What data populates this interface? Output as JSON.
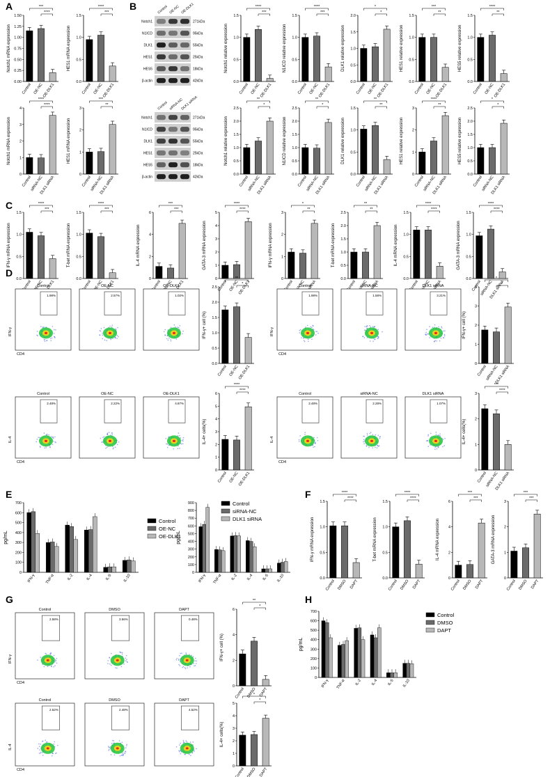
{
  "panel_letters": [
    "A",
    "B",
    "C",
    "D",
    "E",
    "F",
    "G",
    "H"
  ],
  "colors": {
    "black": "#000000",
    "dark_gray": "#6b6b6b",
    "light_gray": "#b8b8b8",
    "white": "#ffffff"
  },
  "western_blots": [
    {
      "lanes": [
        "Control",
        "OE-NC",
        "OE-DLK1"
      ],
      "proteins": [
        "Notch1",
        "N1ICD",
        "DLK1",
        "HES1",
        "HES5",
        "β-actin"
      ],
      "sizes": [
        "271kDa",
        "95kDa",
        "55kDa",
        "25kDa",
        "18kDa",
        "42kDa"
      ]
    },
    {
      "lanes": [
        "Control",
        "siRNA-NC",
        "DLK1 siRNA"
      ],
      "proteins": [
        "Notch1",
        "N1ICD",
        "DLK1",
        "HES1",
        "HES5",
        "β-actin"
      ],
      "sizes": [
        "271kDa",
        "95kDa",
        "55kDa",
        "25kDa",
        "18kDa",
        "42kDa"
      ]
    }
  ],
  "flow_sets": [
    {
      "titles": [
        "Control",
        "OE-NC",
        "OE-DLK1"
      ],
      "ylabel": "IFN-γ",
      "xlabel": "CD4",
      "percents": [
        "1.98%",
        "2.57%",
        "1.02%"
      ]
    },
    {
      "titles": [
        "Control",
        "siRNA-NC",
        "DLK1 siRNA"
      ],
      "ylabel": "IFN-γ",
      "xlabel": "CD4",
      "percents": [
        "1.98%",
        "1.58%",
        "3.21%"
      ]
    },
    {
      "titles": [
        "Control",
        "OE-NC",
        "OE-DLK1"
      ],
      "ylabel": "IL-4",
      "xlabel": "CD4",
      "percents": [
        "2.48%",
        "2.22%",
        "4.87%"
      ]
    },
    {
      "titles": [
        "Control",
        "siRNA-NC",
        "DLK1 siRNA"
      ],
      "ylabel": "IL-4",
      "xlabel": "CD4",
      "percents": [
        "2.48%",
        "2.28%",
        "1.07%"
      ]
    },
    {
      "titles": [
        "Control",
        "DMSO",
        "DAPT"
      ],
      "ylabel": "IFN-γ",
      "xlabel": "CD4",
      "percents": [
        "2.58%",
        "3.56%",
        "0.48%"
      ]
    },
    {
      "titles": [
        "Control",
        "DMSO",
        "DAPT"
      ],
      "ylabel": "IL-4",
      "xlabel": "CD4",
      "percents": [
        "2.52%",
        "2.48%",
        "4.52%"
      ]
    }
  ],
  "chart_data": [
    {
      "type": "bar",
      "panel": "A",
      "ylabel": "Notch1 mRNA expression",
      "categories": [
        "Control",
        "OE-NC",
        "OE-DLK1"
      ],
      "values": [
        1.15,
        1.2,
        0.2
      ],
      "ylim": [
        0,
        1.5
      ],
      "yticks": [
        "0.00",
        "0.25",
        "0.50",
        "0.75",
        "1.00",
        "1.25",
        "1.50"
      ],
      "sig": [
        "***",
        "****"
      ]
    },
    {
      "type": "bar",
      "panel": "A",
      "ylabel": "HES1 mRNA expression",
      "categories": [
        "Control",
        "OE-NC",
        "OE-DLK1"
      ],
      "values": [
        0.95,
        1.05,
        0.35
      ],
      "ylim": [
        0,
        1.5
      ],
      "yticks": [
        "0.0",
        "0.5",
        "1.0",
        "1.5"
      ],
      "sig": [
        "****",
        "***"
      ]
    },
    {
      "type": "bar",
      "panel": "B",
      "ylabel": "Notch1 relative expression",
      "categories": [
        "Control",
        "OE-NC",
        "OE-DLK1"
      ],
      "values": [
        1.0,
        1.18,
        0.07
      ],
      "ylim": [
        0,
        1.5
      ],
      "yticks": [
        "0.0",
        "0.5",
        "1.0",
        "1.5"
      ],
      "sig": [
        "****",
        "***"
      ]
    },
    {
      "type": "bar",
      "panel": "B",
      "ylabel": "N1ICD relative expression",
      "categories": [
        "Control",
        "OE-NC",
        "OE-DLK1"
      ],
      "values": [
        1.0,
        1.03,
        0.33
      ],
      "ylim": [
        0,
        1.5
      ],
      "yticks": [
        "0.0",
        "0.5",
        "1.0",
        "1.5"
      ],
      "sig": [
        "****",
        "***"
      ]
    },
    {
      "type": "bar",
      "panel": "B",
      "ylabel": "DLK1 relative expression",
      "categories": [
        "Control",
        "OE-NC",
        "OE-DLK1"
      ],
      "values": [
        1.0,
        1.05,
        1.58
      ],
      "ylim": [
        0,
        2.0
      ],
      "yticks": [
        "0.0",
        "0.5",
        "1.0",
        "1.5",
        "2.0"
      ],
      "sig": [
        "*",
        "*"
      ]
    },
    {
      "type": "bar",
      "panel": "B",
      "ylabel": "HES1 relative expression",
      "categories": [
        "Control",
        "OE-NC",
        "OE-DLK1"
      ],
      "values": [
        1.0,
        1.0,
        0.32
      ],
      "ylim": [
        0,
        1.5
      ],
      "yticks": [
        "0.0",
        "0.5",
        "1.0",
        "1.5"
      ],
      "sig": [
        "***",
        "**"
      ]
    },
    {
      "type": "bar",
      "panel": "B",
      "ylabel": "HES5 relative expression",
      "categories": [
        "Control",
        "OE-NC",
        "OE-DLK1"
      ],
      "values": [
        1.0,
        1.05,
        0.18
      ],
      "ylim": [
        0,
        1.5
      ],
      "yticks": [
        "0.0",
        "0.5",
        "1.0",
        "1.5"
      ],
      "sig": [
        "****",
        "**"
      ]
    },
    {
      "type": "bar",
      "panel": "A",
      "ylabel": "Notch1 mRNA expression",
      "categories": [
        "Control",
        "siRNA-NC",
        "DLK1 siRNA"
      ],
      "values": [
        1.0,
        0.98,
        3.55
      ],
      "ylim": [
        0,
        4
      ],
      "yticks": [
        "0",
        "1",
        "2",
        "3",
        "4"
      ],
      "sig": [
        "****",
        "****"
      ]
    },
    {
      "type": "bar",
      "panel": "A",
      "ylabel": "HES1 mRNA expression",
      "categories": [
        "Control",
        "siRNA-NC",
        "DLK1 siRNA"
      ],
      "values": [
        1.0,
        1.02,
        2.25
      ],
      "ylim": [
        0,
        3
      ],
      "yticks": [
        "0",
        "1",
        "2",
        "3"
      ],
      "sig": [
        "***",
        "**"
      ]
    },
    {
      "type": "bar",
      "panel": "B",
      "ylabel": "Notch1 relative expression",
      "categories": [
        "Control",
        "siRNA-NC",
        "DLK1 siRNA"
      ],
      "values": [
        1.0,
        1.25,
        2.0
      ],
      "ylim": [
        0,
        2.5
      ],
      "yticks": [
        "0.0",
        "0.5",
        "1.0",
        "1.5",
        "2.0",
        "2.5"
      ],
      "sig": [
        "**",
        "*"
      ]
    },
    {
      "type": "bar",
      "panel": "B",
      "ylabel": "N1ICD relative expression",
      "categories": [
        "Control",
        "siRNA-NC",
        "DLK1 siRNA"
      ],
      "values": [
        1.0,
        0.98,
        1.95
      ],
      "ylim": [
        0,
        2.5
      ],
      "yticks": [
        "0.0",
        "0.5",
        "1.0",
        "1.5",
        "2.0",
        "2.5"
      ],
      "sig": [
        "**",
        "*"
      ]
    },
    {
      "type": "bar",
      "panel": "B",
      "ylabel": "DLK1 relative expression",
      "categories": [
        "Control",
        "siRNA-NC",
        "DLK1 siRNA"
      ],
      "values": [
        1.02,
        1.1,
        0.33
      ],
      "ylim": [
        0,
        1.5
      ],
      "yticks": [
        "0.0",
        "0.5",
        "1.0",
        "1.5"
      ],
      "sig": [
        "**",
        "**"
      ]
    },
    {
      "type": "bar",
      "panel": "B",
      "ylabel": "HES1 relative expression",
      "categories": [
        "Control",
        "siRNA-NC",
        "DLK1 siRNA"
      ],
      "values": [
        1.0,
        1.5,
        2.65
      ],
      "ylim": [
        0,
        3
      ],
      "yticks": [
        "0",
        "1",
        "2",
        "3"
      ],
      "sig": [
        "****",
        "**"
      ]
    },
    {
      "type": "bar",
      "panel": "B",
      "ylabel": "HES5 relative expression",
      "categories": [
        "Control",
        "siRNA-NC",
        "DLK1 siRNA"
      ],
      "values": [
        1.0,
        1.0,
        1.92
      ],
      "ylim": [
        0,
        2.5
      ],
      "yticks": [
        "0.0",
        "0.5",
        "1.0",
        "1.5",
        "2.0",
        "2.5"
      ],
      "sig": [
        "*",
        "*"
      ]
    },
    {
      "type": "bar",
      "panel": "C",
      "ylabel": "IFN-γ mRNA expression",
      "categories": [
        "Control",
        "OE-NC",
        "OE-DLK1"
      ],
      "values": [
        1.05,
        0.97,
        0.45
      ],
      "ylim": [
        0,
        1.5
      ],
      "yticks": [
        "0.0",
        "0.5",
        "1.0",
        "1.5"
      ],
      "sig": [
        "****",
        "***"
      ]
    },
    {
      "type": "bar",
      "panel": "C",
      "ylabel": "T-bet mRNA expression",
      "categories": [
        "Control",
        "OE-NC",
        "OE-DLK1"
      ],
      "values": [
        1.03,
        0.95,
        0.13
      ],
      "ylim": [
        0,
        1.5
      ],
      "yticks": [
        "0.0",
        "0.5",
        "1.0",
        "1.5"
      ],
      "sig": [
        "****",
        "***"
      ]
    },
    {
      "type": "bar",
      "panel": "C",
      "ylabel": "IL-4 mRNA expression",
      "categories": [
        "Control",
        "OE-NC",
        "OE-DLK1"
      ],
      "values": [
        1.1,
        0.95,
        5.0
      ],
      "ylim": [
        0,
        6
      ],
      "yticks": [
        "0",
        "2",
        "4",
        "6"
      ],
      "sig": [
        "***",
        "***"
      ]
    },
    {
      "type": "bar",
      "panel": "C",
      "ylabel": "GATA-3 mRNA expression",
      "categories": [
        "Control",
        "OE-NC",
        "OE-DLK1"
      ],
      "values": [
        1.0,
        1.05,
        4.3
      ],
      "ylim": [
        0,
        5
      ],
      "yticks": [
        "0",
        "1",
        "2",
        "3",
        "4",
        "5"
      ],
      "sig": [
        "****",
        "****"
      ]
    },
    {
      "type": "bar",
      "panel": "C",
      "ylabel": "IFN-γ mRNA expression",
      "categories": [
        "Control",
        "siRNA-NC",
        "DLK1 siRNA"
      ],
      "values": [
        1.2,
        1.15,
        2.5
      ],
      "ylim": [
        0,
        3
      ],
      "yticks": [
        "0",
        "1",
        "2",
        "3"
      ],
      "sig": [
        "*",
        "**"
      ]
    },
    {
      "type": "bar",
      "panel": "C",
      "ylabel": "T-bet mRNA expression",
      "categories": [
        "Control",
        "siRNA-NC",
        "DLK1 siRNA"
      ],
      "values": [
        1.0,
        1.0,
        2.0
      ],
      "ylim": [
        0,
        2.5
      ],
      "yticks": [
        "0.0",
        "0.5",
        "1.0",
        "1.5",
        "2.0",
        "2.5"
      ],
      "sig": [
        "**",
        "**"
      ]
    },
    {
      "type": "bar",
      "panel": "C",
      "ylabel": "IL-4 mRNA expression",
      "categories": [
        "Control",
        "siRNA-NC",
        "DLK1 siRNA"
      ],
      "values": [
        1.1,
        1.1,
        0.28
      ],
      "ylim": [
        0,
        1.5
      ],
      "yticks": [
        "0.0",
        "0.5",
        "1.0",
        "1.5"
      ],
      "sig": [
        "****",
        "****"
      ]
    },
    {
      "type": "bar",
      "panel": "C",
      "ylabel": "GATA-3 mRNA expression",
      "categories": [
        "Control",
        "siRNA-NC",
        "DLK1 siRNA"
      ],
      "values": [
        0.97,
        1.12,
        0.15
      ],
      "ylim": [
        0,
        1.5
      ],
      "yticks": [
        "0.0",
        "0.5",
        "1.0",
        "1.5"
      ],
      "sig": [
        "****",
        "****"
      ]
    },
    {
      "type": "bar",
      "panel": "D",
      "ylabel": "IFN-γ+ cell (%)",
      "categories": [
        "Control",
        "OE-NC",
        "OE-DLK1"
      ],
      "values": [
        1.75,
        1.85,
        0.85
      ],
      "ylim": [
        0,
        2.5
      ],
      "yticks": [
        "0.0",
        "0.5",
        "1.0",
        "1.5",
        "2.0",
        "2.5"
      ],
      "sig": [
        "**",
        "*"
      ]
    },
    {
      "type": "bar",
      "panel": "D",
      "ylabel": "IFN-γ+ cell (%)",
      "categories": [
        "Control",
        "siRNA-NC",
        "DLK1 siRNA"
      ],
      "values": [
        1.75,
        1.65,
        2.95
      ],
      "ylim": [
        0,
        4
      ],
      "yticks": [
        "0",
        "1",
        "2",
        "3",
        "4"
      ],
      "sig": [
        "*",
        "*"
      ]
    },
    {
      "type": "bar",
      "panel": "D",
      "ylabel": "IL-4+ cells(%)",
      "categories": [
        "Control",
        "OE-NC",
        "OE-DLK1"
      ],
      "values": [
        2.4,
        2.35,
        4.95
      ],
      "ylim": [
        0,
        6
      ],
      "yticks": [
        "0",
        "1",
        "2",
        "3",
        "4",
        "5",
        "6"
      ],
      "sig": [
        "****",
        "****"
      ]
    },
    {
      "type": "bar",
      "panel": "D",
      "ylabel": "IL-4+ cells(%)",
      "categories": [
        "Control",
        "siRNA-NC",
        "DLK1 siRNA"
      ],
      "values": [
        2.4,
        2.2,
        1.0
      ],
      "ylim": [
        0,
        3
      ],
      "yticks": [
        "0",
        "1",
        "2",
        "3"
      ],
      "sig": [
        "***",
        "****"
      ]
    },
    {
      "type": "bar",
      "panel": "F",
      "ylabel": "IFN-γ mRNA expression",
      "categories": [
        "Control",
        "DMSO",
        "DAPT"
      ],
      "values": [
        1.02,
        1.02,
        0.3
      ],
      "ylim": [
        0,
        1.5
      ],
      "yticks": [
        "0.0",
        "0.5",
        "1.0",
        "1.5"
      ],
      "sig": [
        "****",
        "****"
      ]
    },
    {
      "type": "bar",
      "panel": "F",
      "ylabel": "T-bet mRNA expression",
      "categories": [
        "Control",
        "DMSO",
        "DAPT"
      ],
      "values": [
        1.0,
        1.12,
        0.27
      ],
      "ylim": [
        0,
        1.5
      ],
      "yticks": [
        "0.0",
        "0.5",
        "1.0",
        "1.5"
      ],
      "sig": [
        "****",
        "****"
      ]
    },
    {
      "type": "bar",
      "panel": "F",
      "ylabel": "IL-4 mRNA expression",
      "categories": [
        "Control",
        "DMSO",
        "DAPT"
      ],
      "values": [
        1.0,
        1.05,
        4.3
      ],
      "ylim": [
        0,
        6
      ],
      "yticks": [
        "0",
        "2",
        "4",
        "6"
      ],
      "sig": [
        "***",
        "***"
      ]
    },
    {
      "type": "bar",
      "panel": "F",
      "ylabel": "GATA-3 mRNA expression",
      "categories": [
        "Control",
        "DMSO",
        "DAPT"
      ],
      "values": [
        1.05,
        1.18,
        2.5
      ],
      "ylim": [
        0,
        3
      ],
      "yticks": [
        "0",
        "1",
        "2",
        "3"
      ],
      "sig": [
        "***",
        "***"
      ]
    },
    {
      "type": "bar",
      "panel": "G",
      "ylabel": "IFN-γ+ cell (%)",
      "categories": [
        "Control",
        "DMSO",
        "DAPT"
      ],
      "values": [
        2.5,
        3.5,
        0.5
      ],
      "ylim": [
        0,
        6
      ],
      "yticks": [
        "0",
        "2",
        "4",
        "6"
      ],
      "sig": [
        "**",
        "*"
      ]
    },
    {
      "type": "bar",
      "panel": "G",
      "ylabel": "IL-4+ cells(%)",
      "categories": [
        "Control",
        "DMSO",
        "DAPT"
      ],
      "values": [
        2.45,
        2.5,
        3.8
      ],
      "ylim": [
        0,
        5
      ],
      "yticks": [
        "0",
        "1",
        "2",
        "3",
        "4",
        "5"
      ],
      "sig": [
        "*",
        "*"
      ]
    },
    {
      "type": "grouped_bar",
      "panel": "E",
      "ylabel": "pg/mL",
      "categories": [
        "IFN-γ",
        "TNF-α",
        "IL-2",
        "IL-4",
        "IL-5",
        "IL-10"
      ],
      "ylim": [
        0,
        700
      ],
      "yticks": [
        "0",
        "100",
        "200",
        "300",
        "400",
        "500",
        "600",
        "700"
      ],
      "series": [
        {
          "name": "Control",
          "values": [
            600,
            300,
            475,
            425,
            50,
            120
          ]
        },
        {
          "name": "OE-NC",
          "values": [
            610,
            305,
            460,
            430,
            55,
            125
          ]
        },
        {
          "name": "OE-DLK1",
          "values": [
            390,
            260,
            330,
            560,
            55,
            115
          ]
        }
      ]
    },
    {
      "type": "grouped_bar",
      "panel": "E",
      "ylabel": "pg/mL",
      "categories": [
        "IFN-γ",
        "TNF-α",
        "IL-2",
        "IL-4",
        "IL-5",
        "IL-10"
      ],
      "ylim": [
        0,
        900
      ],
      "yticks": [
        "0",
        "100",
        "200",
        "300",
        "400",
        "500",
        "600",
        "700",
        "800",
        "900"
      ],
      "series": [
        {
          "name": "Control",
          "values": [
            590,
            295,
            470,
            410,
            45,
            120
          ]
        },
        {
          "name": "siRNA-NC",
          "values": [
            620,
            290,
            475,
            400,
            45,
            130
          ]
        },
        {
          "name": "DLK1 siRNA",
          "values": [
            840,
            280,
            470,
            330,
            45,
            140
          ]
        }
      ]
    },
    {
      "type": "grouped_bar",
      "panel": "H",
      "ylabel": "pg/mL",
      "categories": [
        "IFN-γ",
        "TNF-α",
        "IL-2",
        "IL-4",
        "IL-5",
        "IL-10"
      ],
      "ylim": [
        0,
        700
      ],
      "yticks": [
        "0",
        "100",
        "200",
        "300",
        "400",
        "500",
        "600",
        "700"
      ],
      "series": [
        {
          "name": "Control",
          "values": [
            600,
            340,
            520,
            450,
            50,
            150
          ]
        },
        {
          "name": "DMSO",
          "values": [
            580,
            350,
            525,
            420,
            50,
            150
          ]
        },
        {
          "name": "DAPT",
          "values": [
            420,
            390,
            400,
            525,
            50,
            145
          ]
        }
      ]
    }
  ]
}
